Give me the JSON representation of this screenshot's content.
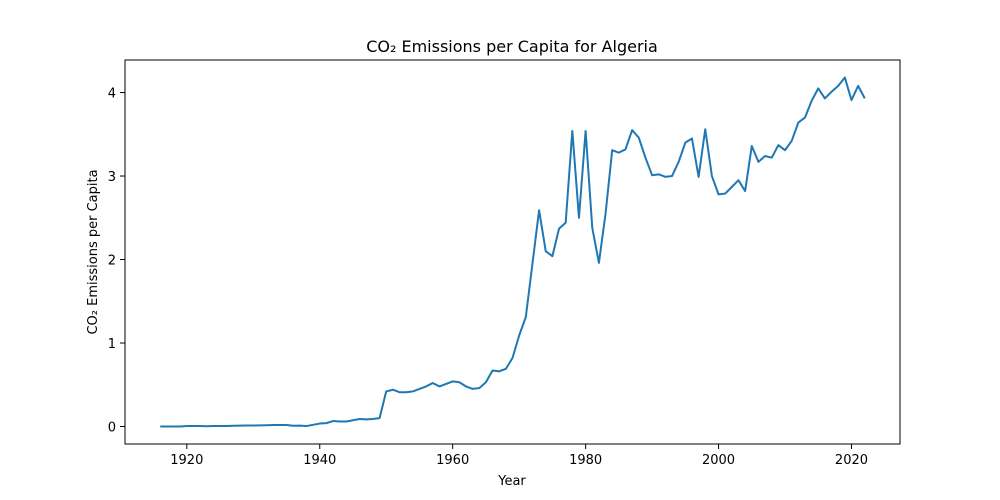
{
  "chart_data": {
    "type": "line",
    "title": "CO₂ Emissions per Capita for Algeria",
    "xlabel": "Year",
    "ylabel": "CO₂ Emissions per Capita",
    "xlim": [
      1910.7,
      2027.3
    ],
    "ylim": [
      -0.21,
      4.39
    ],
    "xticks": [
      1920,
      1940,
      1960,
      1980,
      2000,
      2020
    ],
    "yticks": [
      0,
      1,
      2,
      3,
      4
    ],
    "grid": false,
    "legend": "none",
    "line_color": "#1f77b4",
    "series": [
      {
        "x": [
          1916,
          1917,
          1918,
          1919,
          1920,
          1921,
          1922,
          1923,
          1924,
          1925,
          1926,
          1927,
          1928,
          1929,
          1930,
          1931,
          1932,
          1933,
          1934,
          1935,
          1936,
          1937,
          1938,
          1939,
          1940,
          1941,
          1942,
          1943,
          1944,
          1945,
          1946,
          1947,
          1948,
          1949,
          1950,
          1951,
          1952,
          1953,
          1954,
          1955,
          1956,
          1957,
          1958,
          1959,
          1960,
          1961,
          1962,
          1963,
          1964,
          1965,
          1966,
          1967,
          1968,
          1969,
          1970,
          1971,
          1972,
          1973,
          1974,
          1975,
          1976,
          1977,
          1978,
          1979,
          1980,
          1981,
          1982,
          1983,
          1984,
          1985,
          1986,
          1987,
          1988,
          1989,
          1990,
          1991,
          1992,
          1993,
          1994,
          1995,
          1996,
          1997,
          1998,
          1999,
          2000,
          2001,
          2002,
          2003,
          2004,
          2005,
          2006,
          2007,
          2008,
          2009,
          2010,
          2011,
          2012,
          2013,
          2014,
          2015,
          2016,
          2017,
          2018,
          2019,
          2020,
          2021,
          2022
        ],
        "y": [
          0.0,
          0.0,
          0.0,
          0.0,
          0.005,
          0.005,
          0.005,
          0.003,
          0.005,
          0.005,
          0.006,
          0.008,
          0.01,
          0.012,
          0.012,
          0.013,
          0.015,
          0.017,
          0.018,
          0.018,
          0.008,
          0.01,
          0.005,
          0.02,
          0.035,
          0.04,
          0.065,
          0.06,
          0.06,
          0.075,
          0.09,
          0.085,
          0.09,
          0.1,
          0.42,
          0.44,
          0.41,
          0.41,
          0.42,
          0.45,
          0.48,
          0.52,
          0.48,
          0.51,
          0.54,
          0.53,
          0.48,
          0.45,
          0.46,
          0.53,
          0.67,
          0.66,
          0.69,
          0.82,
          1.09,
          1.31,
          1.95,
          2.59,
          2.1,
          2.04,
          2.37,
          2.44,
          3.54,
          2.5,
          3.54,
          2.38,
          1.96,
          2.55,
          3.31,
          3.28,
          3.32,
          3.55,
          3.46,
          3.22,
          3.01,
          3.02,
          2.99,
          3.0,
          3.17,
          3.4,
          3.45,
          2.99,
          3.56,
          3.0,
          2.78,
          2.79,
          2.87,
          2.95,
          2.82,
          3.36,
          3.17,
          3.24,
          3.22,
          3.37,
          3.31,
          3.42,
          3.64,
          3.7,
          3.9,
          4.05,
          3.93,
          4.01,
          4.08,
          4.18,
          3.91,
          4.08,
          3.93
        ]
      }
    ]
  }
}
